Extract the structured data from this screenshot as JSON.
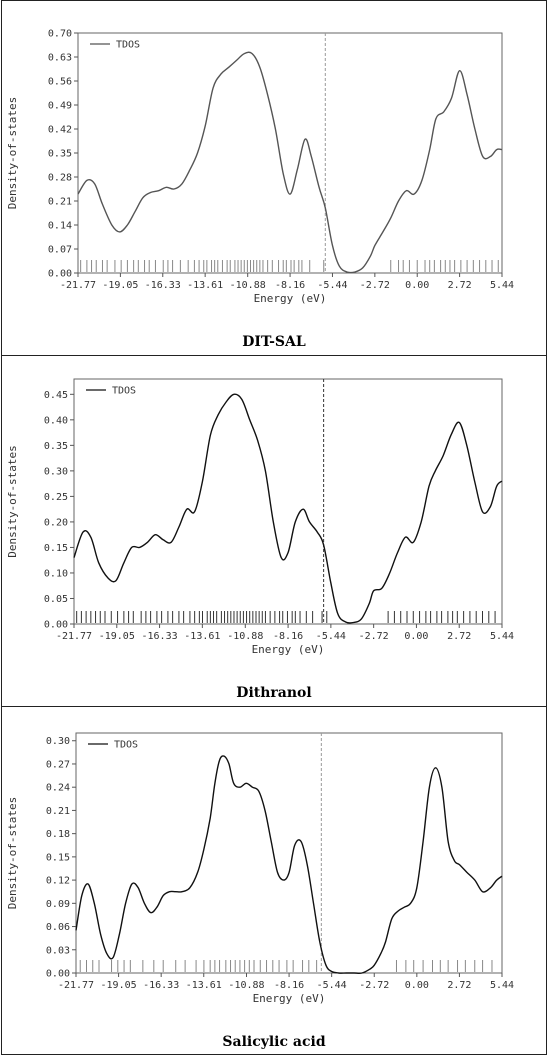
{
  "chart_data": [
    {
      "type": "line",
      "caption": "DIT-SAL",
      "xlabel": "Energy (eV)",
      "ylabel": "Density-of-states",
      "legend": "TDOS",
      "legend_position": "top-left",
      "xlim": [
        -21.77,
        5.44
      ],
      "ylim": [
        0,
        0.7
      ],
      "xticks": [
        "-21.77",
        "-19.05",
        "-16.33",
        "-13.61",
        "-10.88",
        "-8.16",
        "-5.44",
        "-2.72",
        "0.00",
        "2.72",
        "5.44"
      ],
      "yticks": [
        "0.00",
        "0.07",
        "0.14",
        "0.21",
        "0.28",
        "0.35",
        "0.42",
        "0.49",
        "0.56",
        "0.63",
        "0.70"
      ],
      "line_color": "#555555",
      "fermi_level": -5.9,
      "series": [
        {
          "x": [
            -21.77,
            -21.2,
            -20.7,
            -20.2,
            -19.6,
            -19.1,
            -18.6,
            -18.1,
            -17.6,
            -17.1,
            -16.6,
            -16.1,
            -15.6,
            -15.1,
            -14.6,
            -14.1,
            -13.6,
            -13.1,
            -12.6,
            -12.1,
            -11.6,
            -11.1,
            -10.6,
            -10.1,
            -9.6,
            -9.1,
            -8.6,
            -8.16,
            -7.7,
            -7.2,
            -6.8,
            -6.3,
            -5.9,
            -5.44,
            -5.0,
            -4.5,
            -4.0,
            -3.5,
            -3.0,
            -2.72,
            -2.2,
            -1.7,
            -1.2,
            -0.7,
            -0.2,
            0.3,
            0.8,
            1.2,
            1.7,
            2.2,
            2.72,
            3.2,
            3.7,
            4.2,
            4.7,
            5.1,
            5.44
          ],
          "y": [
            0.23,
            0.27,
            0.26,
            0.2,
            0.14,
            0.12,
            0.14,
            0.18,
            0.22,
            0.235,
            0.24,
            0.25,
            0.245,
            0.26,
            0.3,
            0.35,
            0.43,
            0.54,
            0.58,
            0.6,
            0.62,
            0.64,
            0.64,
            0.6,
            0.52,
            0.42,
            0.29,
            0.23,
            0.3,
            0.39,
            0.34,
            0.25,
            0.19,
            0.08,
            0.02,
            0.003,
            0.003,
            0.015,
            0.05,
            0.08,
            0.12,
            0.16,
            0.21,
            0.24,
            0.23,
            0.27,
            0.36,
            0.45,
            0.47,
            0.51,
            0.59,
            0.52,
            0.42,
            0.34,
            0.34,
            0.36,
            0.36
          ]
        }
      ],
      "level_marks": [
        -21.6,
        -21.2,
        -20.9,
        -20.6,
        -20.2,
        -19.9,
        -19.4,
        -19.0,
        -18.6,
        -18.2,
        -17.9,
        -17.5,
        -17.2,
        -16.8,
        -16.3,
        -16.0,
        -15.7,
        -15.2,
        -14.7,
        -14.3,
        -14.0,
        -13.7,
        -13.5,
        -13.2,
        -13.0,
        -12.8,
        -12.5,
        -12.2,
        -12.0,
        -11.7,
        -11.5,
        -11.3,
        -11.1,
        -10.9,
        -10.7,
        -10.5,
        -10.3,
        -10.1,
        -9.9,
        -9.6,
        -9.3,
        -8.9,
        -8.6,
        -8.4,
        -8.1,
        -7.9,
        -7.6,
        -7.4,
        -6.9,
        -6.0,
        -1.7,
        -1.2,
        -0.9,
        -0.5,
        0.0,
        0.5,
        0.8,
        1.1,
        1.5,
        1.8,
        2.1,
        2.4,
        2.8,
        3.2,
        3.6,
        4.0,
        4.4,
        4.8,
        5.2
      ]
    },
    {
      "type": "line",
      "caption": "Dithranol",
      "xlabel": "Energy (eV)",
      "ylabel": "Density-of-states",
      "legend": "TDOS",
      "legend_position": "top-left",
      "xlim": [
        -21.77,
        5.44
      ],
      "ylim": [
        0,
        0.48
      ],
      "xticks": [
        "-21.77",
        "-19.05",
        "-16.33",
        "-13.61",
        "-10.88",
        "-8.16",
        "-5.44",
        "-2.72",
        "0.00",
        "2.72",
        "5.44"
      ],
      "yticks": [
        "0.00",
        "0.05",
        "0.10",
        "0.15",
        "0.20",
        "0.25",
        "0.30",
        "0.35",
        "0.40",
        "0.45"
      ],
      "line_color": "#111111",
      "fermi_level": -5.9,
      "series": [
        {
          "x": [
            -21.77,
            -21.2,
            -20.7,
            -20.2,
            -19.6,
            -19.1,
            -18.6,
            -18.1,
            -17.6,
            -17.1,
            -16.6,
            -16.1,
            -15.6,
            -15.1,
            -14.6,
            -14.1,
            -13.6,
            -13.1,
            -12.6,
            -12.1,
            -11.6,
            -11.1,
            -10.6,
            -10.1,
            -9.6,
            -9.1,
            -8.6,
            -8.16,
            -7.7,
            -7.2,
            -6.8,
            -6.3,
            -5.9,
            -5.44,
            -5.0,
            -4.5,
            -4.0,
            -3.5,
            -3.0,
            -2.72,
            -2.2,
            -1.7,
            -1.2,
            -0.7,
            -0.2,
            0.3,
            0.8,
            1.2,
            1.7,
            2.2,
            2.72,
            3.2,
            3.7,
            4.2,
            4.7,
            5.1,
            5.44
          ],
          "y": [
            0.13,
            0.18,
            0.17,
            0.12,
            0.09,
            0.085,
            0.12,
            0.15,
            0.15,
            0.16,
            0.175,
            0.165,
            0.16,
            0.19,
            0.225,
            0.22,
            0.28,
            0.37,
            0.41,
            0.435,
            0.45,
            0.44,
            0.4,
            0.36,
            0.3,
            0.2,
            0.13,
            0.14,
            0.2,
            0.225,
            0.2,
            0.18,
            0.155,
            0.08,
            0.02,
            0.004,
            0.003,
            0.01,
            0.04,
            0.065,
            0.07,
            0.1,
            0.14,
            0.17,
            0.16,
            0.2,
            0.27,
            0.3,
            0.33,
            0.37,
            0.395,
            0.35,
            0.28,
            0.22,
            0.23,
            0.27,
            0.28
          ]
        }
      ],
      "level_marks": [
        -21.6,
        -21.3,
        -21.0,
        -20.7,
        -20.4,
        -20.1,
        -19.8,
        -19.4,
        -19.0,
        -18.6,
        -18.3,
        -18.0,
        -17.5,
        -17.2,
        -16.9,
        -16.5,
        -16.2,
        -15.8,
        -15.5,
        -15.1,
        -14.8,
        -14.4,
        -14.1,
        -13.8,
        -13.6,
        -13.3,
        -13.1,
        -12.9,
        -12.7,
        -12.4,
        -12.2,
        -12.0,
        -11.8,
        -11.6,
        -11.4,
        -11.2,
        -11.0,
        -10.8,
        -10.6,
        -10.4,
        -10.2,
        -10.0,
        -9.8,
        -9.6,
        -9.3,
        -9.0,
        -8.7,
        -8.5,
        -8.2,
        -7.9,
        -7.7,
        -7.4,
        -7.0,
        -6.6,
        -6.0,
        -5.7,
        -1.8,
        -1.4,
        -1.0,
        -0.6,
        -0.2,
        0.2,
        0.6,
        0.9,
        1.3,
        1.6,
        2.0,
        2.3,
        2.6,
        3.0,
        3.4,
        3.8,
        4.2,
        4.6,
        5.0
      ]
    },
    {
      "type": "line",
      "caption": "Salicylic acid",
      "xlabel": "Energy (eV)",
      "ylabel": "Density-of-states",
      "legend": "TDOS",
      "legend_position": "top-left",
      "xlim": [
        -21.77,
        5.44
      ],
      "ylim": [
        0,
        0.31
      ],
      "xticks": [
        "-21.77",
        "-19.05",
        "-16.33",
        "-13.61",
        "-10.88",
        "-8.16",
        "-5.44",
        "-2.72",
        "0.00",
        "2.72",
        "5.44"
      ],
      "yticks": [
        "0.00",
        "0.03",
        "0.06",
        "0.09",
        "0.12",
        "0.15",
        "0.18",
        "0.21",
        "0.24",
        "0.27",
        "0.30"
      ],
      "line_color": "#111111",
      "fermi_level": -6.1,
      "series": [
        {
          "x": [
            -21.77,
            -21.4,
            -21.0,
            -20.6,
            -20.2,
            -19.8,
            -19.4,
            -19.0,
            -18.6,
            -18.2,
            -17.8,
            -17.4,
            -17.0,
            -16.6,
            -16.2,
            -15.8,
            -15.4,
            -15.0,
            -14.5,
            -14.0,
            -13.6,
            -13.2,
            -12.9,
            -12.6,
            -12.3,
            -12.0,
            -11.7,
            -11.3,
            -10.9,
            -10.5,
            -10.1,
            -9.7,
            -9.3,
            -8.9,
            -8.5,
            -8.16,
            -7.8,
            -7.4,
            -7.0,
            -6.6,
            -6.2,
            -5.8,
            -5.44,
            -5.0,
            -4.5,
            -4.0,
            -3.5,
            -3.0,
            -2.72,
            -2.3,
            -2.0,
            -1.6,
            -1.2,
            -0.8,
            -0.4,
            0.0,
            0.4,
            0.8,
            1.2,
            1.6,
            2.0,
            2.4,
            2.72,
            3.2,
            3.7,
            4.2,
            4.7,
            5.1,
            5.44
          ],
          "y": [
            0.055,
            0.1,
            0.115,
            0.09,
            0.05,
            0.025,
            0.02,
            0.05,
            0.09,
            0.115,
            0.11,
            0.09,
            0.078,
            0.085,
            0.1,
            0.105,
            0.105,
            0.105,
            0.11,
            0.13,
            0.16,
            0.2,
            0.245,
            0.275,
            0.28,
            0.27,
            0.245,
            0.24,
            0.245,
            0.24,
            0.235,
            0.21,
            0.17,
            0.13,
            0.12,
            0.13,
            0.165,
            0.17,
            0.14,
            0.09,
            0.04,
            0.01,
            0.002,
            0.0,
            0.0,
            0.0,
            0.0,
            0.005,
            0.01,
            0.025,
            0.04,
            0.07,
            0.08,
            0.085,
            0.09,
            0.11,
            0.17,
            0.24,
            0.265,
            0.24,
            0.17,
            0.145,
            0.14,
            0.13,
            0.12,
            0.105,
            0.11,
            0.12,
            0.125
          ]
        }
      ],
      "level_marks": [
        -21.5,
        -21.1,
        -20.7,
        -20.3,
        -19.5,
        -19.1,
        -18.7,
        -18.3,
        -17.5,
        -16.8,
        -16.2,
        -15.4,
        -14.8,
        -14.1,
        -13.6,
        -13.2,
        -12.9,
        -12.6,
        -12.2,
        -11.9,
        -11.6,
        -11.3,
        -11.0,
        -10.7,
        -10.4,
        -10.0,
        -9.6,
        -9.2,
        -8.8,
        -8.3,
        -7.9,
        -7.3,
        -6.9,
        -6.4,
        -1.3,
        -0.7,
        -0.2,
        0.4,
        1.0,
        1.5,
        2.0,
        2.6,
        3.1,
        3.7,
        4.2,
        4.8
      ]
    }
  ]
}
